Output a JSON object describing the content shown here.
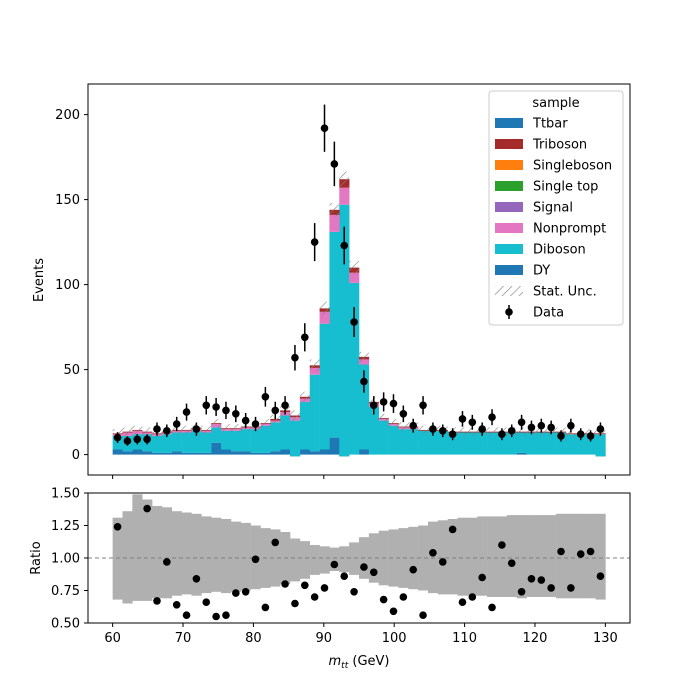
{
  "chart_data": [
    {
      "type": "histogram",
      "title": "",
      "xlabel": "",
      "ylabel": "Events",
      "xlim": [
        56.5,
        133.5
      ],
      "ylim": [
        -12,
        218
      ],
      "yticks": [
        0,
        50,
        100,
        150,
        200
      ],
      "x_bins": [
        60,
        61.4,
        62.8,
        64.2,
        65.6,
        67,
        68.4,
        69.8,
        71.2,
        72.6,
        74,
        75.4,
        76.8,
        78.2,
        79.6,
        81,
        82.4,
        83.8,
        85.2,
        86.6,
        88,
        89.4,
        90.8,
        92.2,
        93.6,
        95,
        96.4,
        97.8,
        99.2,
        100.6,
        102,
        103.4,
        104.8,
        106.2,
        107.6,
        109,
        110.4,
        111.8,
        113.2,
        114.6,
        116,
        117.4,
        118.8,
        120.2,
        121.6,
        123,
        124.4,
        125.8,
        127.2,
        128.6,
        130
      ],
      "stack": [
        {
          "name": "DY",
          "color": "#1f77b4",
          "values": [
            3,
            2,
            3,
            2,
            1,
            1,
            2,
            1,
            1,
            1,
            7,
            3,
            2,
            2,
            1,
            1,
            2,
            3,
            -1,
            3,
            2,
            3,
            10,
            -1,
            0,
            3,
            0,
            0,
            0,
            0,
            0,
            0,
            0,
            0,
            0,
            0,
            0,
            0,
            0,
            0,
            0,
            1,
            0,
            0,
            0,
            0,
            0,
            0,
            0,
            -1
          ]
        },
        {
          "name": "Diboson",
          "color": "#17becf",
          "values": [
            8,
            9,
            9,
            10,
            10,
            11,
            11,
            12,
            13,
            12,
            9,
            11,
            12,
            13,
            14,
            16,
            17,
            20,
            21,
            28,
            45,
            74,
            121,
            148,
            101,
            50,
            28,
            20,
            17,
            15,
            15,
            14,
            14,
            14,
            13,
            13,
            13,
            13,
            13,
            13,
            13,
            12,
            13,
            13,
            13,
            13,
            12,
            12,
            12,
            13
          ]
        },
        {
          "name": "Nonprompt",
          "color": "#e377c2",
          "values": [
            1,
            2,
            2,
            1,
            1,
            1,
            1,
            1,
            1,
            1,
            2,
            1,
            1,
            1,
            1,
            1,
            1,
            2,
            2,
            2,
            4,
            7,
            10,
            10,
            6,
            3,
            2,
            1,
            1,
            1,
            1,
            0,
            0,
            0,
            0,
            0,
            0,
            0,
            0,
            0,
            0,
            0,
            0,
            0,
            0,
            0,
            0,
            0,
            0,
            0
          ]
        },
        {
          "name": "Signal",
          "color": "#9467bd",
          "values": [
            0,
            0,
            0,
            0,
            0,
            0,
            0,
            0,
            0,
            0,
            0,
            0,
            0,
            0,
            0,
            0,
            0,
            0,
            0,
            0,
            0,
            0,
            0,
            0,
            0,
            0,
            0,
            0,
            0,
            0,
            0,
            0,
            0,
            0,
            0,
            0,
            0,
            0,
            0,
            0,
            0,
            0,
            0,
            0,
            0,
            0,
            0,
            0,
            0,
            0
          ]
        },
        {
          "name": "Single top",
          "color": "#2ca02c",
          "values": [
            0,
            0,
            0,
            0,
            0,
            0,
            0,
            0,
            0,
            0,
            0,
            0,
            0,
            0,
            0,
            0,
            0,
            0,
            0,
            0,
            0,
            0,
            0,
            0,
            0,
            0,
            0,
            0,
            0,
            0,
            0,
            0,
            0,
            0,
            0,
            0,
            0,
            0,
            0,
            0,
            0,
            0,
            0,
            0,
            0,
            0,
            0,
            0,
            0,
            0
          ]
        },
        {
          "name": "Singleboson",
          "color": "#ff7f0e",
          "values": [
            0,
            0,
            0,
            0,
            0,
            0,
            0,
            0,
            0,
            0,
            0,
            0,
            0,
            0,
            0,
            0,
            0,
            0,
            0,
            0,
            0,
            0,
            0,
            0,
            0,
            0,
            0,
            0,
            0,
            0,
            0,
            0,
            0,
            0,
            0,
            0,
            0,
            0,
            0,
            0,
            0,
            0,
            0,
            0,
            0,
            0,
            0,
            0,
            0,
            0
          ]
        },
        {
          "name": "Triboson",
          "color": "#a52a2a",
          "values": [
            0.5,
            0.5,
            0.5,
            0.5,
            0.5,
            0.5,
            0.5,
            0.5,
            0.5,
            0.5,
            0.5,
            0.5,
            0.5,
            0.5,
            0.5,
            0.5,
            1,
            1,
            1,
            1,
            1.5,
            2,
            3,
            5,
            3,
            1.5,
            1,
            0.5,
            0.5,
            0.5,
            0.5,
            0.5,
            0.5,
            0.5,
            0.5,
            0.5,
            0.5,
            0.5,
            0.5,
            0.5,
            0.5,
            0.5,
            0.5,
            0.5,
            0.5,
            0.5,
            0.5,
            0.5,
            0.5,
            0.5
          ]
        },
        {
          "name": "Ttbar",
          "color": "#1f77b4",
          "values": [
            0,
            0,
            0,
            0,
            0,
            0,
            0,
            0,
            0,
            0,
            0,
            0,
            0,
            0,
            0,
            0,
            0,
            0,
            0,
            0,
            0,
            0,
            0,
            0,
            0,
            0,
            0,
            0,
            0,
            0,
            0,
            0,
            0,
            0,
            0,
            0,
            0,
            0,
            0,
            0,
            0,
            0,
            0,
            0,
            0,
            0,
            0,
            0,
            0,
            0
          ]
        }
      ],
      "stat_unc": [
        2.5,
        2.5,
        2.5,
        2.5,
        2.5,
        2.5,
        2.5,
        2.5,
        2.5,
        2.5,
        2.5,
        2.5,
        2.5,
        2.5,
        2.5,
        2.5,
        2.5,
        3,
        3,
        3,
        3.5,
        4,
        4,
        4.5,
        4,
        3,
        2.5,
        2.5,
        2.5,
        2.5,
        2.5,
        2.5,
        2.5,
        2.5,
        2.5,
        2.5,
        2.5,
        2.5,
        2.5,
        2.5,
        2.5,
        2.5,
        2.5,
        2.5,
        2.5,
        2.5,
        2.5,
        2.5,
        2.5,
        2.5
      ],
      "data": {
        "name": "Data",
        "color": "#000000",
        "x": [
          60.7,
          62.1,
          63.5,
          64.9,
          66.3,
          67.7,
          69.1,
          70.5,
          71.9,
          73.3,
          74.7,
          76.1,
          77.5,
          78.9,
          80.3,
          81.7,
          83.1,
          84.5,
          85.9,
          87.3,
          88.7,
          90.1,
          91.5,
          92.9,
          94.3,
          95.7,
          97.1,
          98.5,
          99.9,
          101.3,
          102.7,
          104.1,
          105.5,
          106.9,
          108.3,
          109.7,
          111.1,
          112.5,
          113.9,
          115.3,
          116.7,
          118.1,
          119.5,
          120.9,
          122.3,
          123.7,
          125.1,
          126.5,
          127.9,
          129.3
        ],
        "y": [
          10,
          8,
          9,
          9,
          15,
          14,
          18,
          25,
          15,
          29,
          28,
          26,
          24,
          20,
          18,
          34,
          26,
          29,
          57,
          69,
          125,
          192,
          171,
          123,
          78,
          43,
          29,
          31,
          30,
          24,
          17,
          29,
          15,
          14,
          12,
          21,
          19,
          15,
          22,
          12,
          14,
          19,
          16,
          17,
          16,
          11,
          17,
          12,
          11,
          15
        ],
        "yerr": [
          3.2,
          2.8,
          3.0,
          3.0,
          3.9,
          3.7,
          4.2,
          5.0,
          3.9,
          5.4,
          5.3,
          5.1,
          4.9,
          4.5,
          4.2,
          5.8,
          5.1,
          5.4,
          7.5,
          8.3,
          11.2,
          13.9,
          13.1,
          11.1,
          8.8,
          6.6,
          5.4,
          5.6,
          5.5,
          4.9,
          4.1,
          5.4,
          3.9,
          3.7,
          3.5,
          4.6,
          4.4,
          3.9,
          4.7,
          3.5,
          3.7,
          4.4,
          4.0,
          4.1,
          4.0,
          3.3,
          4.1,
          3.5,
          3.3,
          3.9
        ]
      },
      "legend": {
        "title": "sample",
        "placement": "upper right",
        "stat_label": "Stat. Unc."
      }
    },
    {
      "type": "scatter",
      "title": "",
      "xlabel": "m_tt (GeV)",
      "xlabel_main": "m",
      "xlabel_sub": "tt",
      "xlabel_unit": " (GeV)",
      "ylabel": "Ratio",
      "xlim": [
        56.5,
        133.5
      ],
      "ylim": [
        0.5,
        1.5
      ],
      "xticks": [
        60,
        70,
        80,
        90,
        100,
        110,
        120,
        130
      ],
      "yticks": [
        0.5,
        0.75,
        1.0,
        1.25,
        1.5
      ],
      "ytick_labels": [
        "0.50",
        "0.75",
        "1.00",
        "1.25",
        "1.50"
      ],
      "reference_line": 1.0,
      "unc_band": {
        "color": "#b0b0b0",
        "low": [
          0.68,
          0.65,
          0.67,
          0.67,
          0.69,
          0.69,
          0.71,
          0.72,
          0.71,
          0.73,
          0.74,
          0.73,
          0.74,
          0.75,
          0.76,
          0.77,
          0.78,
          0.8,
          0.82,
          0.84,
          0.87,
          0.88,
          0.9,
          0.89,
          0.87,
          0.84,
          0.81,
          0.79,
          0.78,
          0.77,
          0.76,
          0.75,
          0.73,
          0.72,
          0.72,
          0.71,
          0.71,
          0.71,
          0.7,
          0.7,
          0.7,
          0.69,
          0.7,
          0.7,
          0.7,
          0.69,
          0.69,
          0.69,
          0.69,
          0.68
        ],
        "high": [
          1.31,
          1.36,
          1.49,
          1.45,
          1.4,
          1.39,
          1.36,
          1.35,
          1.34,
          1.32,
          1.31,
          1.3,
          1.28,
          1.27,
          1.25,
          1.23,
          1.22,
          1.2,
          1.15,
          1.13,
          1.1,
          1.09,
          1.08,
          1.09,
          1.12,
          1.16,
          1.19,
          1.21,
          1.22,
          1.23,
          1.24,
          1.25,
          1.28,
          1.29,
          1.3,
          1.31,
          1.31,
          1.32,
          1.32,
          1.32,
          1.33,
          1.33,
          1.33,
          1.33,
          1.33,
          1.34,
          1.34,
          1.34,
          1.34,
          1.34
        ]
      },
      "points": {
        "x": [
          60.7,
          64.9,
          66.3,
          67.7,
          69.1,
          70.5,
          71.9,
          73.3,
          74.7,
          76.1,
          77.5,
          78.9,
          80.3,
          81.7,
          83.1,
          84.5,
          85.9,
          87.3,
          88.7,
          90.1,
          91.5,
          92.9,
          94.3,
          95.7,
          97.1,
          98.5,
          99.9,
          101.3,
          102.7,
          104.1,
          105.5,
          106.9,
          108.3,
          109.7,
          111.1,
          112.5,
          113.9,
          115.3,
          116.7,
          118.1,
          119.5,
          120.9,
          122.3,
          123.7,
          125.1,
          126.5,
          127.9,
          129.3
        ],
        "y": [
          1.24,
          1.38,
          0.67,
          0.97,
          0.64,
          0.56,
          0.84,
          0.66,
          0.55,
          0.56,
          0.73,
          0.74,
          0.99,
          0.62,
          1.12,
          0.8,
          0.65,
          0.79,
          0.7,
          0.77,
          0.95,
          0.86,
          0.74,
          0.93,
          0.89,
          0.68,
          0.59,
          0.7,
          0.91,
          0.56,
          1.04,
          0.97,
          1.22,
          0.66,
          0.7,
          0.85,
          0.62,
          1.1,
          0.96,
          0.74,
          0.84,
          0.83,
          0.77,
          1.05,
          0.77,
          1.03,
          1.05,
          0.86
        ]
      }
    }
  ]
}
